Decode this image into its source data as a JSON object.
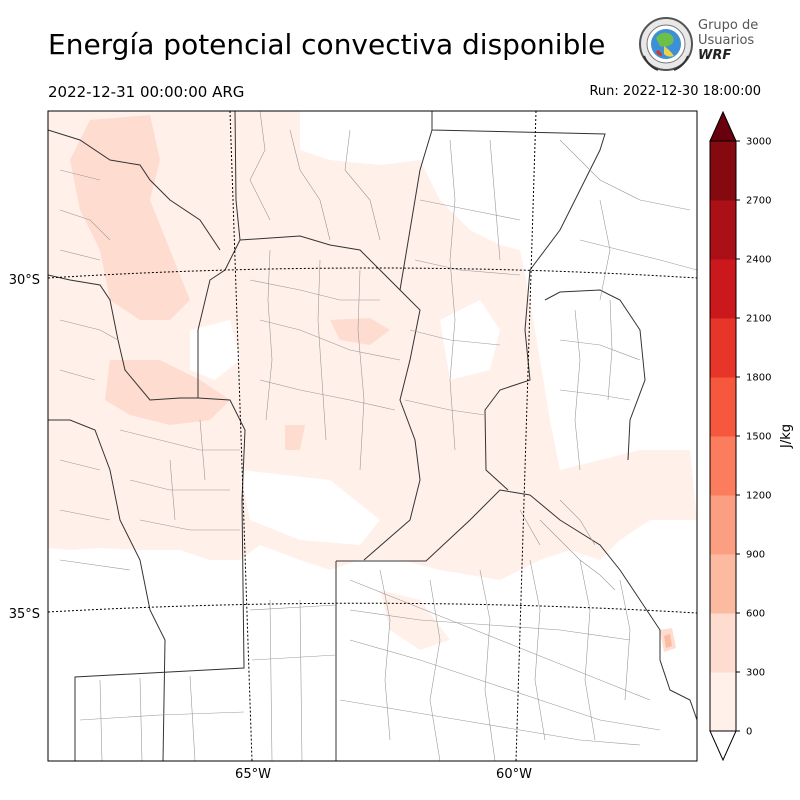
{
  "header": {
    "title": "Energía potencial convectiva disponible",
    "valid_time": "2022-12-31 00:00:00 ARG",
    "run_time": "Run: 2022-12-30 18:00:00"
  },
  "logo": {
    "line1": "Grupo de",
    "line2": "Usuarios",
    "line3": "WRF"
  },
  "map": {
    "lat_labels": [
      "30°S",
      "35°S"
    ],
    "lon_labels": [
      "65°W",
      "60°W"
    ]
  },
  "colorbar": {
    "unit": "J/kg",
    "ticks": [
      "0",
      "300",
      "600",
      "900",
      "1200",
      "1500",
      "1800",
      "2100",
      "2400",
      "2700",
      "3000"
    ],
    "colors": [
      "#fff0ea",
      "#fedccf",
      "#fcbba1",
      "#fc9e81",
      "#fb7d5e",
      "#f6583e",
      "#e8352a",
      "#ca181c",
      "#ab1016",
      "#840a10",
      "#68000d"
    ],
    "extend": "max"
  }
}
